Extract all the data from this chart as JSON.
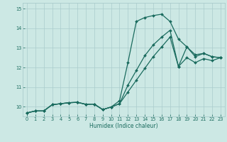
{
  "xlabel": "Humidex (Indice chaleur)",
  "bg_color": "#cce8e4",
  "grid_color": "#aacccc",
  "line_color": "#1a6b5e",
  "xlim": [
    -0.5,
    23.5
  ],
  "ylim": [
    9.5,
    15.3
  ],
  "xticks": [
    0,
    1,
    2,
    3,
    4,
    5,
    6,
    7,
    8,
    9,
    10,
    11,
    12,
    13,
    14,
    15,
    16,
    17,
    18,
    19,
    20,
    21,
    22,
    23
  ],
  "yticks": [
    10,
    11,
    12,
    13,
    14,
    15
  ],
  "line1_x": [
    0,
    1,
    2,
    3,
    4,
    5,
    6,
    7,
    8,
    9,
    10,
    11,
    12,
    13,
    14,
    15,
    16,
    17,
    18,
    19,
    20,
    21,
    22,
    23
  ],
  "line1_y": [
    9.68,
    9.78,
    9.78,
    10.1,
    10.15,
    10.2,
    10.22,
    10.12,
    10.13,
    9.85,
    9.98,
    10.3,
    12.25,
    14.35,
    14.55,
    14.65,
    14.72,
    14.35,
    13.45,
    13.05,
    12.65,
    12.72,
    12.55,
    12.5
  ],
  "line2_x": [
    0,
    1,
    2,
    3,
    4,
    5,
    6,
    7,
    8,
    9,
    10,
    11,
    12,
    13,
    14,
    15,
    16,
    17,
    18,
    19,
    20,
    21,
    22,
    23
  ],
  "line2_y": [
    9.68,
    9.78,
    9.78,
    10.1,
    10.15,
    10.2,
    10.22,
    10.12,
    10.13,
    9.85,
    9.98,
    10.15,
    11.1,
    11.85,
    12.6,
    13.15,
    13.55,
    13.9,
    12.05,
    13.05,
    12.55,
    12.72,
    12.55,
    12.5
  ],
  "line3_x": [
    0,
    1,
    2,
    3,
    4,
    5,
    6,
    7,
    8,
    9,
    10,
    11,
    12,
    13,
    14,
    15,
    16,
    17,
    18,
    19,
    20,
    21,
    22,
    23
  ],
  "line3_y": [
    9.68,
    9.78,
    9.78,
    10.1,
    10.15,
    10.2,
    10.22,
    10.12,
    10.13,
    9.85,
    9.98,
    10.15,
    10.75,
    11.35,
    11.95,
    12.55,
    13.05,
    13.55,
    12.05,
    12.5,
    12.25,
    12.45,
    12.35,
    12.5
  ]
}
